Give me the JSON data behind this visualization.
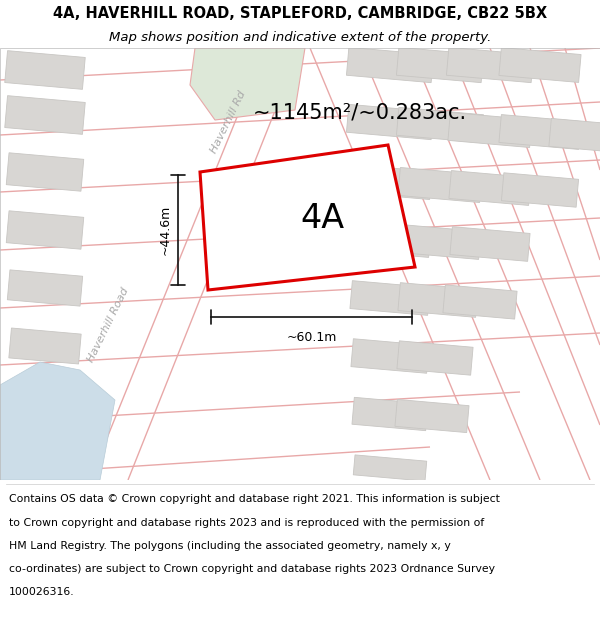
{
  "title_line1": "4A, HAVERHILL ROAD, STAPLEFORD, CAMBRIDGE, CB22 5BX",
  "title_line2": "Map shows position and indicative extent of the property.",
  "area_label": "~1145m²/~0.283ac.",
  "property_label": "4A",
  "width_label": "~60.1m",
  "height_label": "~44.6m",
  "road_label_upper": "Haverhill Rd",
  "road_label_lower": "Haverhill Road",
  "footer_lines": [
    "Contains OS data © Crown copyright and database right 2021. This information is subject",
    "to Crown copyright and database rights 2023 and is reproduced with the permission of",
    "HM Land Registry. The polygons (including the associated geometry, namely x, y",
    "co-ordinates) are subject to Crown copyright and database rights 2023 Ordnance Survey",
    "100026316."
  ],
  "map_bg": "#f2f0ed",
  "property_fill": "#f2f0ed",
  "property_edge": "#dd0000",
  "road_color": "#e8a8a8",
  "building_fill": "#d8d6d3",
  "building_edge": "#c8c6c3",
  "green_fill": "#dde8d8",
  "green_edge": "#e8a8a8",
  "water_fill": "#ccdde8",
  "water_edge": "#b8ccd8",
  "dim_color": "#111111",
  "title_fs": 10.5,
  "subtitle_fs": 9.5,
  "area_fs": 15,
  "prop_label_fs": 24,
  "dim_fs": 9,
  "road_label_fs": 8,
  "footer_fs": 7.8
}
